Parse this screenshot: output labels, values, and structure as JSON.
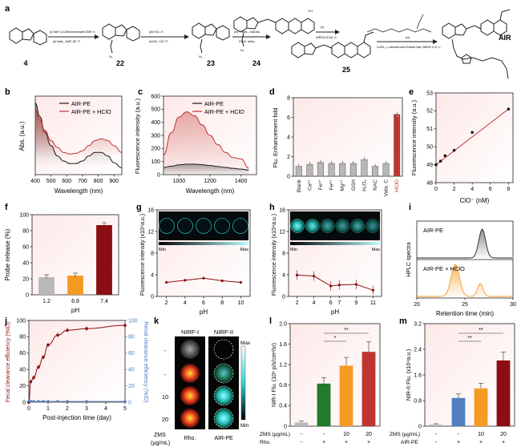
{
  "scheme": {
    "panel_letter": "a",
    "compounds": [
      "4",
      "22",
      "23",
      "24",
      "25",
      "AIR"
    ],
    "steps": [
      {
        "top": "(i) NaH 1,5-Dibromohexane,DMF, rt",
        "bottom": "(ii) NaN₃, DMF, 80 °C"
      },
      {
        "top": "(iii) HCl, rt",
        "bottom": "AcOH, 120 °C"
      },
      {
        "top": "(iv) ¹¹ BBr₃, NaOAc",
        "bottom": "DCM, reflux"
      },
      {
        "top": "(v)",
        "bottom": "DIPEA,DCM, rt"
      },
      {
        "top": "(vi)",
        "bottom": "CuSO₄, L-Ascorbic Acid Sodium Salt, DMSO/ H₂O, rt"
      }
    ]
  },
  "colors": {
    "black": "#1a1a1a",
    "red": "#c0342f",
    "dark_red": "#8b0f12",
    "orange": "#f59a23",
    "green": "#227a2a",
    "gray": "#b8b8b8",
    "cyan": "#33d4d4",
    "blue": "#4f7fbf"
  },
  "chart_data": [
    {
      "panel": "b",
      "type": "line",
      "xlabel": "Wavelength (nm)",
      "ylabel": "Abs. (a.u.)",
      "xlim": [
        400,
        950
      ],
      "xticks": [
        400,
        500,
        600,
        700,
        800,
        900
      ],
      "legend": [
        "AIR-PE",
        "AIR-PE + HClO"
      ],
      "series": [
        {
          "name": "AIR-PE",
          "x": [
            400,
            430,
            460,
            500,
            540,
            580,
            620,
            660,
            700,
            740,
            780,
            820,
            860,
            900,
            950
          ],
          "y": [
            0.42,
            0.34,
            0.25,
            0.17,
            0.11,
            0.08,
            0.065,
            0.065,
            0.08,
            0.11,
            0.13,
            0.13,
            0.11,
            0.07,
            0.04
          ]
        },
        {
          "name": "AIR-PE + HClO",
          "x": [
            400,
            430,
            460,
            500,
            540,
            580,
            620,
            660,
            700,
            740,
            780,
            820,
            860,
            900,
            950
          ],
          "y": [
            0.38,
            0.32,
            0.26,
            0.2,
            0.16,
            0.13,
            0.12,
            0.125,
            0.14,
            0.17,
            0.2,
            0.21,
            0.2,
            0.17,
            0.13
          ]
        }
      ]
    },
    {
      "panel": "c",
      "type": "line",
      "xlabel": "Wavelength (nm)",
      "ylabel": "Fluorescence intensity (a.u.)",
      "xlim": [
        900,
        1500
      ],
      "ylim": [
        0,
        600
      ],
      "xticks": [
        1000,
        1200,
        1400
      ],
      "yticks": [
        0,
        100,
        200,
        300,
        400,
        500,
        600
      ],
      "legend": [
        "AIR-PE",
        "AIR-PE + HClO"
      ],
      "series": [
        {
          "name": "AIR-PE",
          "x": [
            900,
            950,
            1000,
            1050,
            1100,
            1150,
            1200,
            1250,
            1300,
            1350,
            1400,
            1450
          ],
          "y": [
            55,
            65,
            75,
            80,
            80,
            76,
            70,
            62,
            55,
            48,
            42,
            35
          ]
        },
        {
          "name": "AIR-PE + HClO",
          "x": [
            900,
            950,
            1000,
            1050,
            1100,
            1150,
            1200,
            1250,
            1300,
            1350,
            1400,
            1450
          ],
          "y": [
            150,
            320,
            440,
            480,
            450,
            380,
            300,
            230,
            170,
            130,
            120,
            50
          ]
        }
      ]
    },
    {
      "panel": "d",
      "type": "bar",
      "ylabel": "Flu. Enhancement fold",
      "ylim": [
        0,
        8
      ],
      "yticks": [
        0,
        2,
        4,
        6,
        8
      ],
      "categories": [
        "Blank",
        "Ca²⁺",
        "Fe³⁺",
        "Fe²⁺",
        "Mg²⁺",
        "GSH",
        "H₂O₂",
        "NAC",
        "Vata. C",
        "HClO"
      ],
      "values": [
        1.0,
        1.2,
        1.4,
        1.3,
        1.3,
        1.3,
        1.7,
        1.0,
        1.3,
        6.3
      ]
    },
    {
      "panel": "e",
      "type": "scatter",
      "xlabel": "ClO⁻ (nM)",
      "ylabel": "Fluorescence intensity (a.u.)",
      "xlim": [
        0,
        8.5
      ],
      "ylim": [
        48,
        53
      ],
      "xticks": [
        0,
        2,
        4,
        6,
        8
      ],
      "yticks": [
        48,
        49,
        50,
        51,
        52,
        53
      ],
      "x": [
        0,
        0.5,
        1,
        2,
        4,
        8
      ],
      "y": [
        49.0,
        49.2,
        49.5,
        49.8,
        50.8,
        52.1
      ]
    },
    {
      "panel": "f",
      "type": "bar",
      "xlabel": "pH",
      "ylabel": "Probe release (%)",
      "ylim": [
        0,
        100
      ],
      "yticks": [
        0,
        20,
        40,
        60,
        80,
        100
      ],
      "categories": [
        "1.2",
        "6.8",
        "7.4"
      ],
      "values": [
        22,
        24,
        87
      ]
    },
    {
      "panel": "g",
      "type": "line",
      "xlabel": "pH",
      "ylabel": "Fluorescence intensity (x10⁴a.u.)",
      "ylim": [
        0,
        16
      ],
      "yticks": [
        0,
        4,
        8,
        12,
        16
      ],
      "xticks": [
        2,
        4,
        6,
        8,
        10
      ],
      "x": [
        2,
        4,
        6,
        8,
        10
      ],
      "y": [
        2.7,
        3.1,
        3.5,
        3.0,
        2.7
      ],
      "strip_labels": [
        "Min",
        "Max"
      ]
    },
    {
      "panel": "h",
      "type": "line",
      "xlabel": "pH",
      "ylabel": "Fluorescence intensity (x10⁴a.u.)",
      "ylim": [
        0,
        16
      ],
      "yticks": [
        0,
        4,
        8,
        12,
        16
      ],
      "xticks": [
        2,
        4,
        6,
        7,
        9,
        11
      ],
      "x": [
        2,
        4,
        6,
        7,
        9,
        11
      ],
      "y": [
        4.1,
        3.9,
        2.0,
        2.2,
        2.3,
        1.2
      ],
      "strip_labels": [
        "Min",
        "Max"
      ]
    },
    {
      "panel": "i",
      "type": "line",
      "xlabel": "Retention time (min)",
      "ylabel": "HPLC spectra",
      "xlim": [
        20,
        30
      ],
      "xticks": [
        20,
        25,
        30
      ],
      "labels": [
        "AIR-PE",
        "AIR-PE + HClO"
      ],
      "peaks_top": [
        26.8
      ],
      "peaks_bottom": [
        24.0,
        26.6
      ]
    },
    {
      "panel": "j",
      "type": "line",
      "xlabel": "Post-injection time (day)",
      "ylabel": "Fecal clearance efficiency (%ID)",
      "ylabel2": "Renal clearance efficiency (%ID)",
      "xlim": [
        0,
        5
      ],
      "ylim": [
        0,
        100
      ],
      "xticks": [
        0,
        1,
        2,
        3,
        4,
        5
      ],
      "yticks": [
        0,
        20,
        40,
        60,
        80,
        100
      ],
      "series": [
        {
          "name": "Fecal",
          "x": [
            0,
            0.1,
            0.25,
            0.5,
            0.75,
            1,
            1.5,
            2,
            3,
            5
          ],
          "y": [
            0,
            25,
            30,
            43,
            55,
            70,
            82,
            88,
            90,
            94
          ]
        },
        {
          "name": "Renal",
          "x": [
            0,
            0.1,
            0.25,
            0.5,
            0.75,
            1,
            1.5,
            2,
            3,
            5
          ],
          "y": [
            0,
            0,
            0,
            0,
            0,
            0,
            0,
            0,
            0,
            0
          ]
        }
      ]
    },
    {
      "panel": "l",
      "type": "bar",
      "ylabel": "NIR-I Flu. (10⁸ p/s/cm²/sr)",
      "ylim": [
        0,
        2.0
      ],
      "yticks": [
        0,
        0.4,
        0.8,
        1.2,
        1.6,
        2.0
      ],
      "rows": [
        {
          "label": "ZMS (μg/mL)",
          "values": [
            "-",
            "-",
            "10",
            "20"
          ]
        },
        {
          "label": "Rho.",
          "values": [
            "-",
            "+",
            "+",
            "+"
          ]
        }
      ],
      "values": [
        0.07,
        0.83,
        1.18,
        1.45
      ],
      "significance": [
        "*",
        "**"
      ]
    },
    {
      "panel": "m",
      "type": "bar",
      "ylabel": "NIR-II Flu. (x10⁴a.u.)",
      "ylim": [
        0,
        3.2
      ],
      "yticks": [
        0,
        0.8,
        1.6,
        2.4,
        3.2
      ],
      "rows": [
        {
          "label": "ZMS (μg/mL)",
          "values": [
            "-",
            "-",
            "10",
            "20"
          ]
        },
        {
          "label": "AIR-PE",
          "values": [
            "-",
            "+",
            "+",
            "+"
          ]
        }
      ],
      "values": [
        0.05,
        0.88,
        1.18,
        2.05
      ],
      "significance": [
        "**",
        "**"
      ]
    }
  ],
  "panel_k": {
    "headers": [
      "NIRF-I",
      "NIRF-II"
    ],
    "row_labels": [
      "-",
      "-",
      "10",
      "20"
    ],
    "footer": [
      "ZMS",
      "(μg/mL)",
      "Rho.",
      "AIR-PE"
    ],
    "scale": [
      "Max",
      "Min"
    ]
  }
}
